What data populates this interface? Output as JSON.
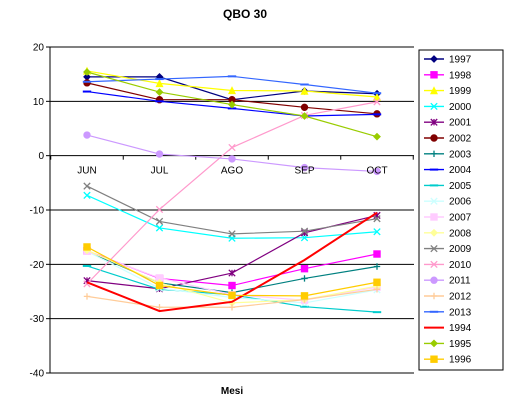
{
  "chart_data": {
    "type": "line",
    "title": "QBO 30",
    "xlabel": "Mesi",
    "ylabel": "",
    "categories": [
      "JUN",
      "JUL",
      "AGO",
      "SEP",
      "OCT"
    ],
    "y_ticks": [
      "20",
      "10",
      "0",
      "-10",
      "-20",
      "-30",
      "-40"
    ],
    "ylim": [
      -40,
      20
    ],
    "grid": "horizontal major lines",
    "legend_position": "right",
    "series": [
      {
        "name": "1997",
        "color": "#000080",
        "marker": "diamond",
        "values": [
          14.5,
          14.5,
          10.3,
          11.9,
          11.4
        ]
      },
      {
        "name": "1998",
        "color": "#ff00ff",
        "marker": "square",
        "values": [
          -17.5,
          -22.6,
          -23.9,
          -20.8,
          -18.1
        ]
      },
      {
        "name": "1999",
        "color": "#ffff00",
        "marker": "triangle",
        "values": [
          15.6,
          13.3,
          12.0,
          11.9,
          10.8
        ]
      },
      {
        "name": "2000",
        "color": "#00ffff",
        "marker": "x",
        "values": [
          -7.3,
          -13.3,
          -15.2,
          -15.1,
          -14.0
        ]
      },
      {
        "name": "2001",
        "color": "#800080",
        "marker": "star",
        "values": [
          -23.0,
          -24.5,
          -21.6,
          -14.2,
          -11.0
        ]
      },
      {
        "name": "2002",
        "color": "#800000",
        "marker": "circle",
        "values": [
          13.4,
          10.3,
          10.3,
          8.9,
          7.7
        ]
      },
      {
        "name": "2003",
        "color": "#008080",
        "marker": "plus",
        "values": [
          -17.6,
          -23.4,
          -25.2,
          -22.6,
          -20.4
        ]
      },
      {
        "name": "2004",
        "color": "#0000ff",
        "marker": "dash",
        "values": [
          11.8,
          10.0,
          8.7,
          7.3,
          7.6
        ]
      },
      {
        "name": "2005",
        "color": "#00cccc",
        "marker": "dash",
        "values": [
          -20.3,
          -24.6,
          -25.6,
          -27.8,
          -28.8
        ]
      },
      {
        "name": "2006",
        "color": "#ccffff",
        "marker": "x",
        "values": [
          -17.6,
          -24.4,
          -26.1,
          -27.1,
          -24.7
        ]
      },
      {
        "name": "2007",
        "color": "#ffccff",
        "marker": "square",
        "values": [
          -17.6,
          -22.5,
          -25.6,
          -26.6,
          -24.2
        ]
      },
      {
        "name": "2008",
        "color": "#ffff99",
        "marker": "diamond",
        "values": [
          -17.4,
          -23.4,
          -27.1,
          -26.5,
          -24.0
        ]
      },
      {
        "name": "2009",
        "color": "#808080",
        "marker": "x",
        "values": [
          -5.6,
          -12.1,
          -14.4,
          -13.9,
          -11.6
        ]
      },
      {
        "name": "2010",
        "color": "#ff99cc",
        "marker": "x",
        "values": [
          -23.6,
          -9.9,
          1.5,
          7.4,
          9.9
        ]
      },
      {
        "name": "2011",
        "color": "#cc99ff",
        "marker": "circle",
        "values": [
          3.8,
          0.3,
          -0.6,
          -2.2,
          -2.9
        ]
      },
      {
        "name": "2012",
        "color": "#ffcc99",
        "marker": "plus",
        "values": [
          -25.9,
          -27.9,
          -27.9,
          -26.5,
          -24.6
        ]
      },
      {
        "name": "2013",
        "color": "#3366ff",
        "marker": "dash",
        "values": [
          13.6,
          14.1,
          14.6,
          13.1,
          11.5
        ]
      },
      {
        "name": "1994",
        "color": "#ff0000",
        "marker": "none",
        "values": [
          -23.3,
          -28.6,
          -26.9,
          -19.2,
          -10.5
        ]
      },
      {
        "name": "1995",
        "color": "#99cc00",
        "marker": "diamond",
        "values": [
          15.4,
          11.7,
          9.4,
          7.3,
          3.5
        ]
      },
      {
        "name": "1996",
        "color": "#ffcc00",
        "marker": "square",
        "values": [
          -16.8,
          -23.9,
          -25.7,
          -25.8,
          -23.3
        ]
      }
    ]
  }
}
